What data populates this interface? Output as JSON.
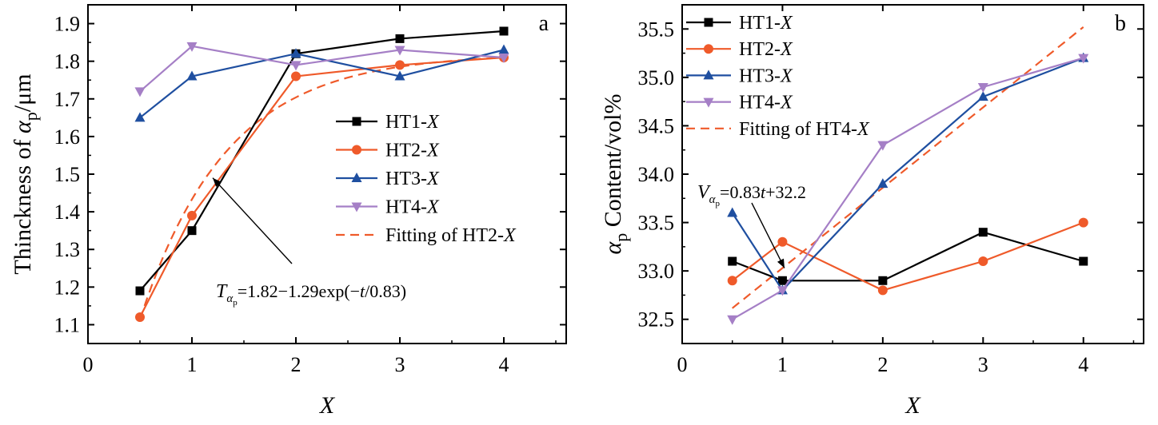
{
  "colors": {
    "HT1": "#000000",
    "HT2": "#ef5a2a",
    "HT3": "#1f4fa0",
    "HT4": "#a57fc6",
    "fit": "#ef5a2a"
  },
  "chart_data": [
    {
      "panel_label": "a",
      "type": "line",
      "xlabel": "X",
      "ylabel_prefix": "Thinckness of ",
      "ylabel_symbol": "α",
      "ylabel_sub": "p",
      "ylabel_suffix": "/μm",
      "xlim": [
        0,
        4.6
      ],
      "ylim": [
        1.05,
        1.95
      ],
      "xticks": [
        0,
        1,
        2,
        3,
        4
      ],
      "xtick_labels": [
        "0",
        "1",
        "2",
        "3",
        "4"
      ],
      "yticks": [
        1.1,
        1.2,
        1.3,
        1.4,
        1.5,
        1.6,
        1.7,
        1.8,
        1.9
      ],
      "ytick_labels": [
        "1.1",
        "1.2",
        "1.3",
        "1.4",
        "1.5",
        "1.6",
        "1.7",
        "1.8",
        "1.9"
      ],
      "x": [
        0.5,
        1,
        2,
        3,
        4
      ],
      "series": [
        {
          "key": "HT1",
          "name_prefix": "HT1-",
          "name_italic": "X",
          "marker": "square",
          "values": [
            1.19,
            1.35,
            1.82,
            1.86,
            1.88
          ]
        },
        {
          "key": "HT2",
          "name_prefix": "HT2-",
          "name_italic": "X",
          "marker": "circle",
          "values": [
            1.12,
            1.39,
            1.76,
            1.79,
            1.81
          ]
        },
        {
          "key": "HT3",
          "name_prefix": "HT3-",
          "name_italic": "X",
          "marker": "triangle-up",
          "values": [
            1.65,
            1.76,
            1.82,
            1.76,
            1.83
          ]
        },
        {
          "key": "HT4",
          "name_prefix": "HT4-",
          "name_italic": "X",
          "marker": "triangle-down",
          "values": [
            1.72,
            1.84,
            1.79,
            1.83,
            1.81
          ]
        }
      ],
      "fit": {
        "name_prefix": "Fitting of HT2-",
        "name_italic": "X",
        "model": "exp",
        "a": 1.82,
        "b": 1.29,
        "tau": 0.83,
        "x_range": [
          0.5,
          4
        ]
      },
      "legend_position": "right",
      "annotation": {
        "var": "T",
        "sub": "α",
        "subsub": "p",
        "text": "=1.82−1.29exp(−",
        "tvar": "t",
        "text2": "/0.83)",
        "arrow_target": [
          1.2,
          1.49
        ]
      }
    },
    {
      "panel_label": "b",
      "type": "line",
      "xlabel": "X",
      "ylabel_symbol": "α",
      "ylabel_sub": "p",
      "ylabel_suffix": " Content/vol%",
      "xlim": [
        0,
        4.6
      ],
      "ylim": [
        32.25,
        35.75
      ],
      "xticks": [
        0,
        1,
        2,
        3,
        4
      ],
      "xtick_labels": [
        "0",
        "1",
        "2",
        "3",
        "4"
      ],
      "yticks": [
        32.5,
        33.0,
        33.5,
        34.0,
        34.5,
        35.0,
        35.5
      ],
      "ytick_labels": [
        "32.5",
        "33.0",
        "33.5",
        "34.0",
        "34.5",
        "35.0",
        "35.5"
      ],
      "x": [
        0.5,
        1,
        2,
        3,
        4
      ],
      "series": [
        {
          "key": "HT1",
          "name_prefix": "HT1-",
          "name_italic": "X",
          "marker": "square",
          "values": [
            33.1,
            32.9,
            32.9,
            33.4,
            33.1
          ]
        },
        {
          "key": "HT2",
          "name_prefix": "HT2-",
          "name_italic": "X",
          "marker": "circle",
          "values": [
            32.9,
            33.3,
            32.8,
            33.1,
            33.5
          ]
        },
        {
          "key": "HT3",
          "name_prefix": "HT3-",
          "name_italic": "X",
          "marker": "triangle-up",
          "values": [
            33.6,
            32.8,
            33.9,
            34.8,
            35.2
          ]
        },
        {
          "key": "HT4",
          "name_prefix": "HT4-",
          "name_italic": "X",
          "marker": "triangle-down",
          "values": [
            32.5,
            32.8,
            34.3,
            34.9,
            35.2
          ]
        }
      ],
      "fit": {
        "name_prefix": "Fitting of HT4-",
        "name_italic": "X",
        "model": "linear",
        "slope": 0.83,
        "intercept": 32.2,
        "x_range": [
          0.5,
          4
        ]
      },
      "legend_position": "top-left",
      "annotation": {
        "var": "V",
        "sub": "α",
        "subsub": "p",
        "text": "=0.83",
        "tvar": "t",
        "text2": "+32.2",
        "arrow_target": [
          1.02,
          33.03
        ]
      }
    }
  ]
}
